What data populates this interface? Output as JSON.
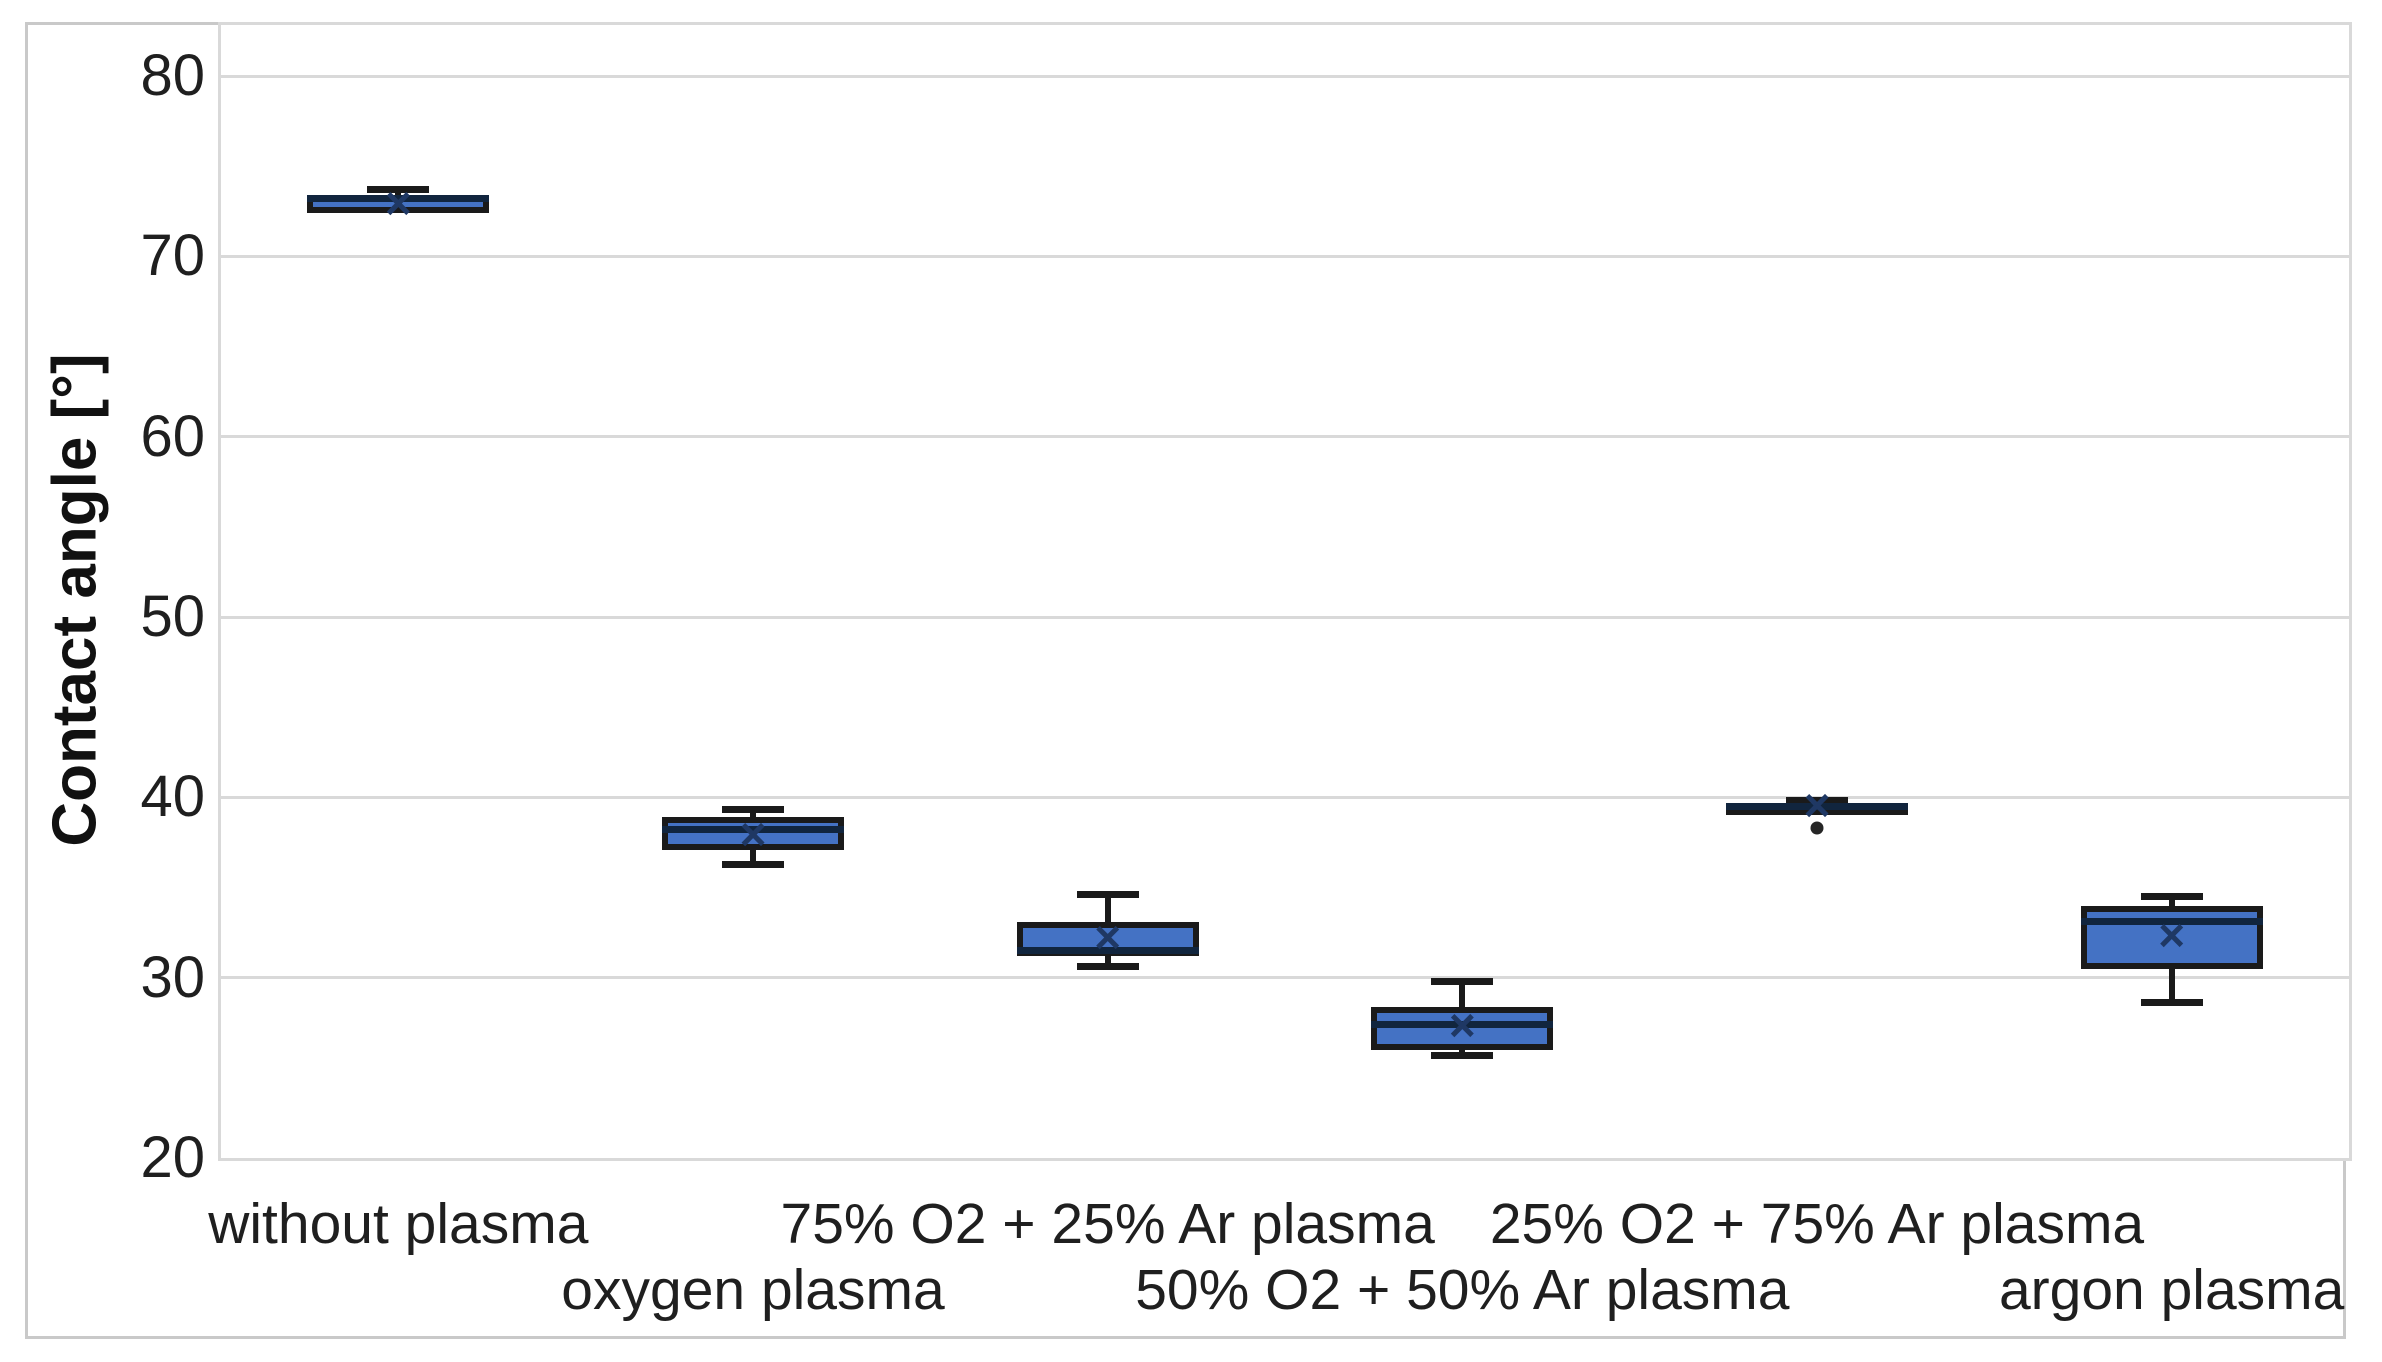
{
  "chart_data": {
    "type": "boxplot",
    "title": "",
    "xlabel": "",
    "ylabel": "Contact angle [°]",
    "ylim": [
      20,
      83
    ],
    "yticks": [
      20,
      30,
      40,
      50,
      60,
      70,
      80
    ],
    "grid": "horizontal",
    "legend": "none",
    "categories": [
      "without plasma",
      "oxygen plasma",
      "75% O2 + 25% Ar plasma",
      "50% O2 + 50% Ar plasma",
      "25% O2 + 75% Ar plasma",
      "argon plasma"
    ],
    "category_label_rows": [
      1,
      2,
      1,
      2,
      1,
      2
    ],
    "boxes": [
      {
        "category": "without plasma",
        "whisker_low": 72.4,
        "q1": 72.4,
        "median": 73.2,
        "q3": 73.4,
        "whisker_high": 73.7,
        "mean": 72.9,
        "outliers": []
      },
      {
        "category": "oxygen plasma",
        "whisker_low": 36.3,
        "q1": 37.1,
        "median": 38.2,
        "q3": 38.9,
        "whisker_high": 39.3,
        "mean": 37.9,
        "outliers": []
      },
      {
        "category": "75% O2 + 25% Ar plasma",
        "whisker_low": 30.6,
        "q1": 31.2,
        "median": 31.5,
        "q3": 33.1,
        "whisker_high": 34.6,
        "mean": 32.2,
        "outliers": []
      },
      {
        "category": "50% O2 + 50% Ar plasma",
        "whisker_low": 25.7,
        "q1": 26.0,
        "median": 27.4,
        "q3": 28.4,
        "whisker_high": 29.8,
        "mean": 27.3,
        "outliers": []
      },
      {
        "category": "25% O2 + 75% Ar plasma",
        "whisker_low": 39.2,
        "q1": 39.2,
        "median": 39.5,
        "q3": 39.7,
        "whisker_high": 39.8,
        "mean": 39.5,
        "outliers": [
          38.3
        ]
      },
      {
        "category": "argon plasma",
        "whisker_low": 28.6,
        "q1": 30.5,
        "median": 33.1,
        "q3": 34.0,
        "whisker_high": 34.5,
        "mean": 32.3,
        "outliers": []
      }
    ],
    "colors": {
      "box_fill": "#4472c4",
      "box_border": "#1a1a1a",
      "median": "#11253e",
      "mean_marker": "#1f3864",
      "outlier": "#262626",
      "gridline": "#d9d9d9",
      "figure_border": "#c9c9c9",
      "text": "#1f1f1f"
    },
    "mean_marker_symbol": "×"
  }
}
